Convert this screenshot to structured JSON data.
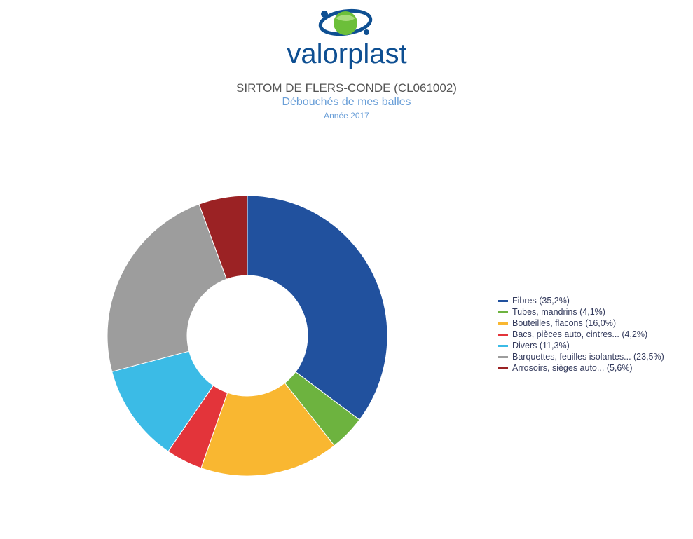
{
  "brand": {
    "name": "valorplast",
    "color": "#0e4f92",
    "accent": "#6cbf3a"
  },
  "header": {
    "title": "SIRTOM DE FLERS-CONDE (CL061002)",
    "subtitle": "Débouchés de mes balles",
    "subtitle2": "Année 2017"
  },
  "chart_data": {
    "type": "pie",
    "title": "SIRTOM DE FLERS-CONDE (CL061002)",
    "subtitle": "Débouchés de mes balles",
    "caption": "Année 2017",
    "donut": true,
    "legend_position": "right",
    "series": [
      {
        "label": "Fibres (35,2%)",
        "value": 35.2,
        "color": "#21519e"
      },
      {
        "label": "Tubes, mandrins (4,1%)",
        "value": 4.1,
        "color": "#6db33f"
      },
      {
        "label": "Bouteilles, flacons (16,0%)",
        "value": 16.0,
        "color": "#f9b731"
      },
      {
        "label": "Bacs, pièces auto, cintres... (4,2%)",
        "value": 4.2,
        "color": "#e3343a"
      },
      {
        "label": "Divers (11,3%)",
        "value": 11.3,
        "color": "#3bbbe6"
      },
      {
        "label": "Barquettes, feuilles isolantes... (23,5%)",
        "value": 23.5,
        "color": "#9d9d9d"
      },
      {
        "label": "Arrosoirs, sièges auto... (5,6%)",
        "value": 5.6,
        "color": "#9b2224"
      }
    ]
  }
}
